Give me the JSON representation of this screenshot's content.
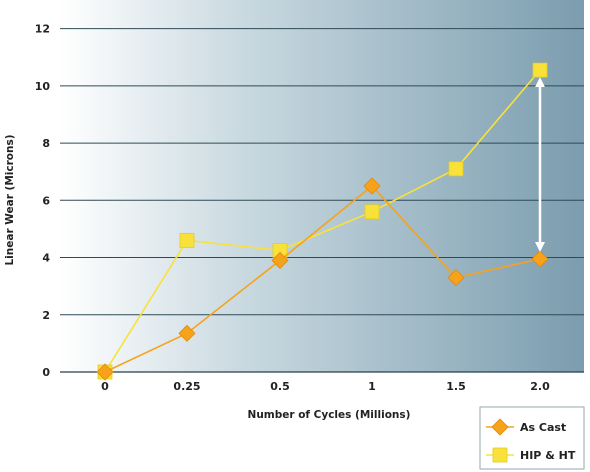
{
  "chart_data": {
    "type": "line",
    "categories": [
      "0",
      "0.25",
      "0.5",
      "1",
      "1.5",
      "2.0"
    ],
    "series": [
      {
        "name": "As Cast",
        "values": [
          0,
          1.35,
          3.9,
          6.5,
          3.3,
          3.95
        ],
        "color": "#f7a21b",
        "marker": "diamond"
      },
      {
        "name": "HIP & HT",
        "values": [
          0,
          4.6,
          4.25,
          5.6,
          7.1,
          10.55
        ],
        "color": "#f8e23a",
        "marker": "square"
      }
    ],
    "yticks": [
      0,
      2,
      4,
      6,
      8,
      10,
      12
    ],
    "ylim": [
      0,
      13
    ],
    "xlabel": "Number of Cycles (Millions)",
    "ylabel": "Linear Wear (Microns)",
    "grid": "horizontal",
    "legend_position": "bottom-right",
    "annotation": "double-headed arrow between series at 2.0"
  }
}
